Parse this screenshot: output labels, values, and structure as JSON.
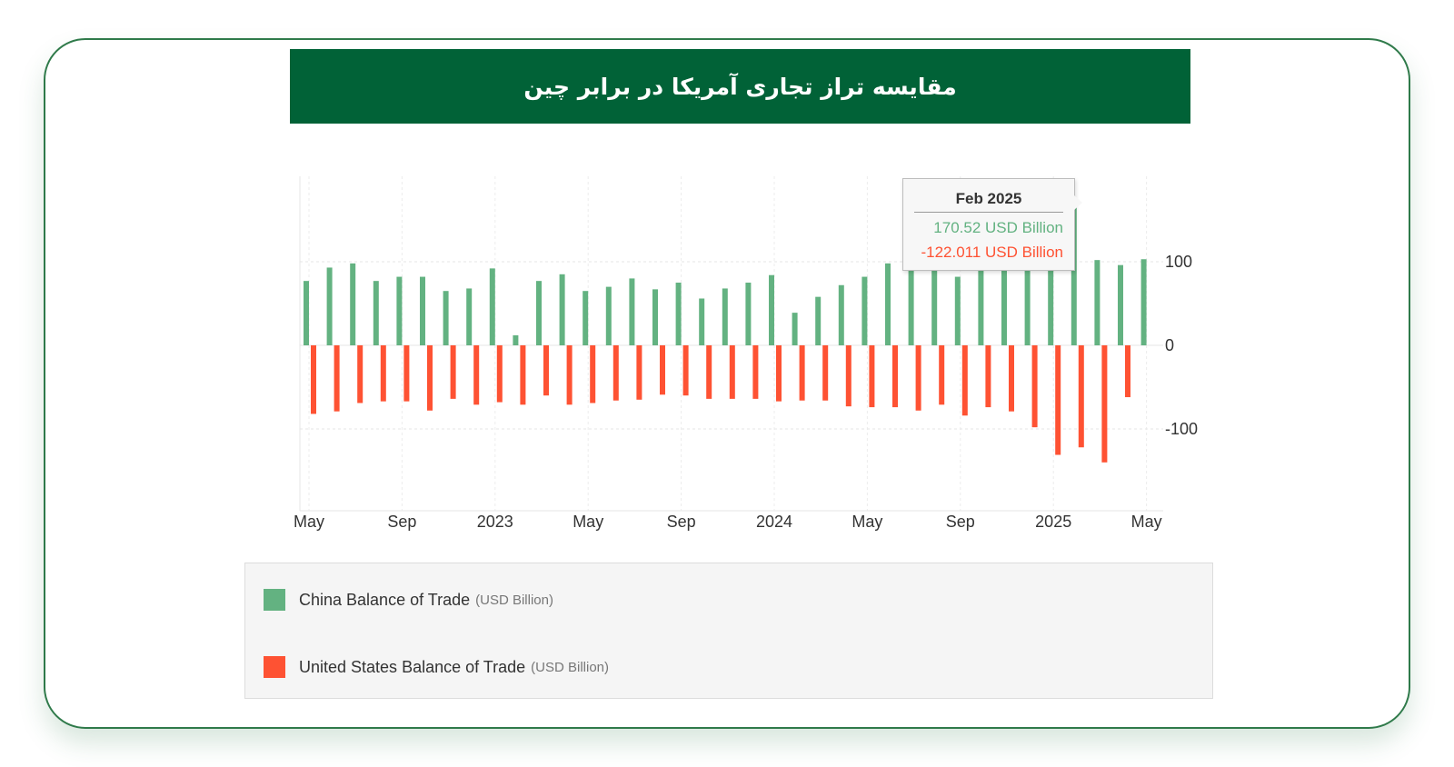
{
  "header": {
    "title": "مقایسه تراز تجاری آمریکا در برابر چین"
  },
  "colors": {
    "china": "#63b281",
    "us": "#fe5233",
    "banner": "#016237",
    "border": "#2f7a4a"
  },
  "chart_data": {
    "type": "bar",
    "title": "",
    "xlabel": "",
    "ylabel": "",
    "ylim": [
      -200,
      200
    ],
    "y_ticks": [
      100,
      0,
      -100
    ],
    "grid": true,
    "x_tick_labels": [
      "May",
      "Sep",
      "2023",
      "May",
      "Sep",
      "2024",
      "May",
      "Sep",
      "2025",
      "May"
    ],
    "categories": [
      "May 2022",
      "Jun 2022",
      "Jul 2022",
      "Aug 2022",
      "Sep 2022",
      "Oct 2022",
      "Nov 2022",
      "Dec 2022",
      "Jan 2023",
      "Feb 2023",
      "Mar 2023",
      "Apr 2023",
      "May 2023",
      "Jun 2023",
      "Jul 2023",
      "Aug 2023",
      "Sep 2023",
      "Oct 2023",
      "Nov 2023",
      "Dec 2023",
      "Jan 2024",
      "Feb 2024",
      "Mar 2024",
      "Apr 2024",
      "May 2024",
      "Jun 2024",
      "Jul 2024",
      "Aug 2024",
      "Sep 2024",
      "Oct 2024",
      "Nov 2024",
      "Dec 2024",
      "Jan 2025",
      "Feb 2025",
      "Mar 2025",
      "Apr 2025",
      "May 2025"
    ],
    "series": [
      {
        "name": "China Balance of Trade",
        "unit": "(USD Billion)",
        "values": [
          77,
          93,
          98,
          77,
          82,
          82,
          65,
          68,
          92,
          12,
          77,
          85,
          65,
          70,
          80,
          67,
          75,
          56,
          68,
          75,
          84,
          39,
          58,
          72,
          82,
          98,
          99,
          91,
          82,
          94,
          97,
          105,
          112,
          170.52,
          102,
          96,
          103
        ]
      },
      {
        "name": "United States Balance of Trade",
        "unit": "(USD Billion)",
        "values": [
          -82,
          -79,
          -69,
          -67,
          -67,
          -78,
          -64,
          -71,
          -68,
          -71,
          -60,
          -71,
          -69,
          -66,
          -65,
          -59,
          -60,
          -64,
          -64,
          -64,
          -67,
          -66,
          -66,
          -73,
          -74,
          -74,
          -78,
          -71,
          -84,
          -74,
          -79,
          -98,
          -131,
          -122.011,
          -140,
          -62,
          null
        ]
      }
    ],
    "tooltip": {
      "title": "Feb 2025",
      "lines": [
        "170.52 USD Billion",
        "-122.011 USD Billion"
      ]
    },
    "legend_position": "bottom"
  }
}
